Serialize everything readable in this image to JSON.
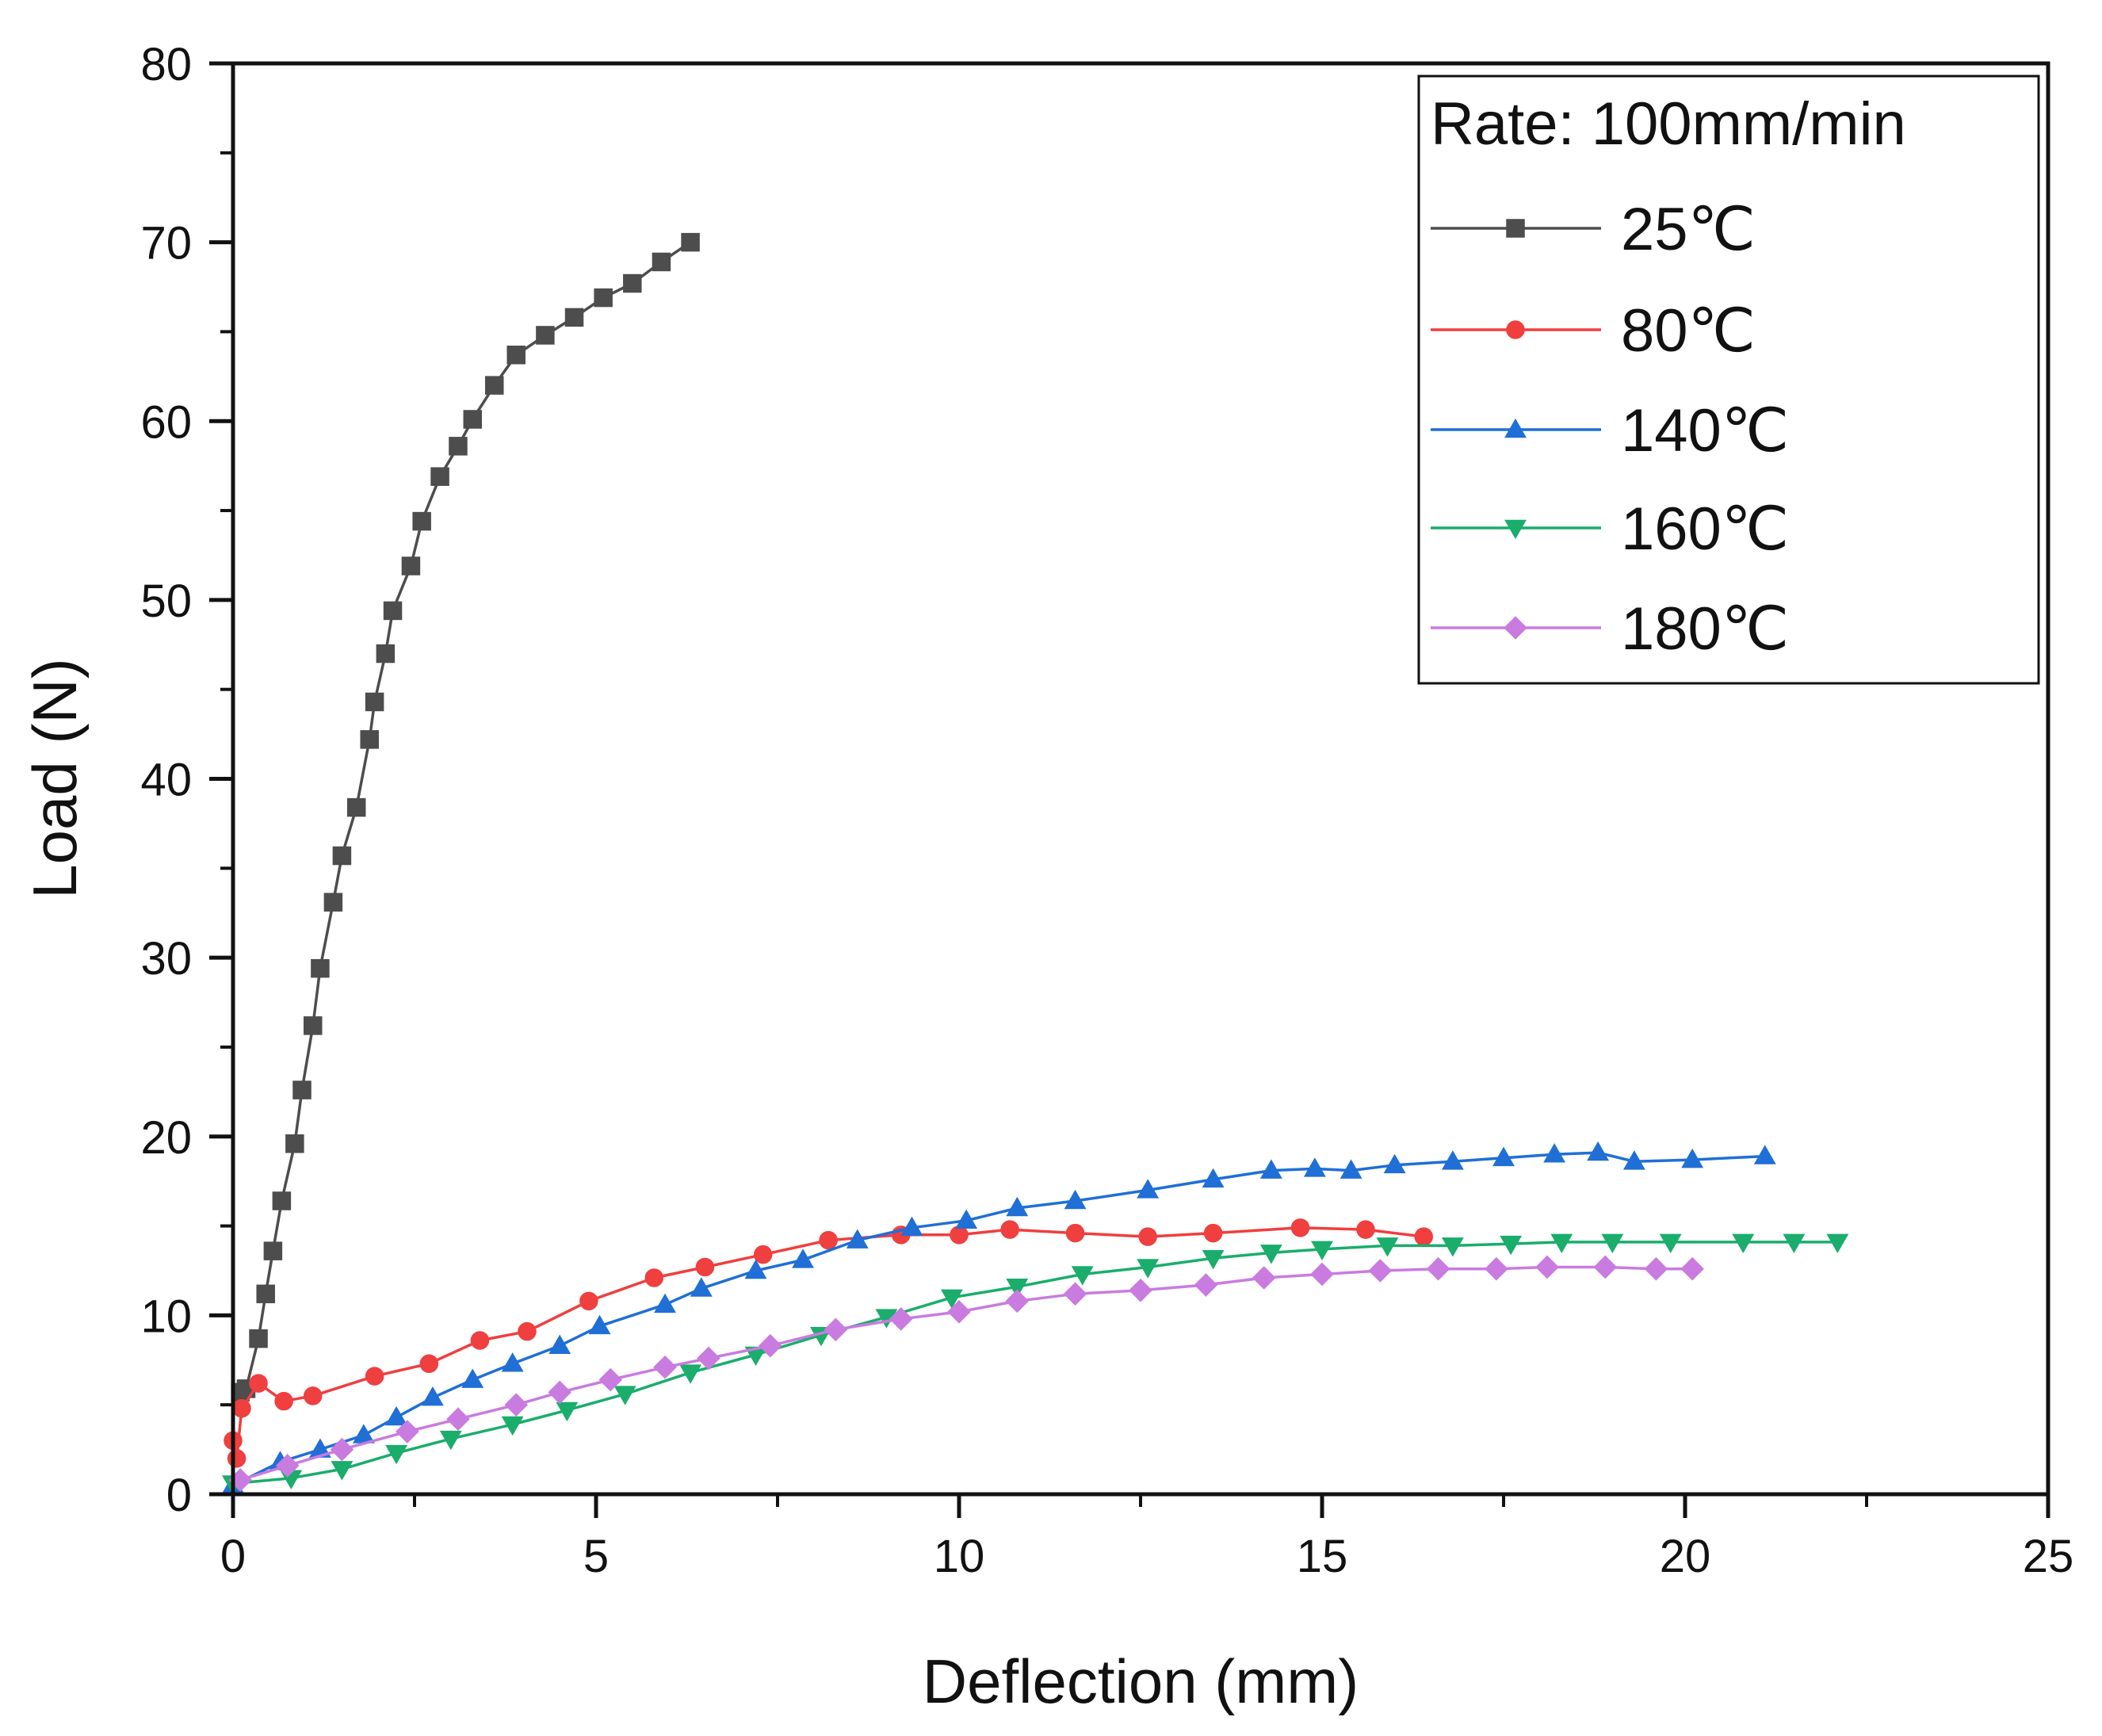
{
  "chart_data": {
    "type": "line",
    "title": "",
    "xlabel": "Deflection (mm)",
    "ylabel": "Load (N)",
    "xlim": [
      0,
      25
    ],
    "ylim": [
      0,
      80
    ],
    "xticks": [
      0,
      5,
      10,
      15,
      20,
      25
    ],
    "yticks": [
      0,
      10,
      20,
      30,
      40,
      50,
      60,
      70,
      80
    ],
    "grid": false,
    "legend": {
      "title": "Rate: 100mm/min",
      "position": "top-right"
    },
    "series": [
      {
        "name": "25℃",
        "color": "#4d4d4d",
        "marker": "square",
        "x": [
          0.1,
          0.18,
          0.35,
          0.45,
          0.55,
          0.67,
          0.85,
          0.95,
          1.1,
          1.2,
          1.38,
          1.5,
          1.7,
          1.88,
          1.95,
          2.1,
          2.2,
          2.45,
          2.6,
          2.85,
          3.1,
          3.3,
          3.6,
          3.9,
          4.3,
          4.7,
          5.1,
          5.5,
          5.9,
          6.3
        ],
        "y": [
          5.7,
          5.9,
          8.7,
          11.2,
          13.6,
          16.4,
          19.6,
          22.6,
          26.2,
          29.4,
          33.1,
          35.7,
          38.4,
          42.2,
          44.3,
          47.0,
          49.4,
          51.9,
          54.4,
          56.9,
          58.6,
          60.1,
          62.0,
          63.7,
          64.8,
          65.8,
          66.9,
          67.7,
          68.9,
          70.0
        ]
      },
      {
        "name": "80℃",
        "color": "#ef3f3f",
        "marker": "circle",
        "x": [
          0.0,
          0.05,
          0.12,
          0.35,
          0.7,
          1.1,
          1.95,
          2.7,
          3.4,
          4.05,
          4.9,
          5.8,
          6.5,
          7.3,
          8.2,
          9.2,
          10.0,
          10.7,
          11.6,
          12.6,
          13.5,
          14.7,
          15.6,
          16.4
        ],
        "y": [
          3.0,
          2.0,
          4.8,
          6.2,
          5.2,
          5.5,
          6.6,
          7.3,
          8.6,
          9.1,
          10.8,
          12.1,
          12.7,
          13.4,
          14.2,
          14.5,
          14.5,
          14.8,
          14.6,
          14.4,
          14.6,
          14.9,
          14.8,
          14.4
        ]
      },
      {
        "name": "140℃",
        "color": "#1f6fd6",
        "marker": "triangle-up",
        "x": [
          0.0,
          0.65,
          1.2,
          1.8,
          2.25,
          2.75,
          3.3,
          3.85,
          4.5,
          5.05,
          5.95,
          6.45,
          7.2,
          7.85,
          8.6,
          9.35,
          10.1,
          10.8,
          11.6,
          12.6,
          13.5,
          14.3,
          14.9,
          15.4,
          16.0,
          16.8,
          17.5,
          18.2,
          18.8,
          19.3,
          20.1,
          21.1
        ],
        "y": [
          0.5,
          1.8,
          2.5,
          3.3,
          4.3,
          5.4,
          6.4,
          7.3,
          8.3,
          9.4,
          10.6,
          11.5,
          12.5,
          13.1,
          14.2,
          14.9,
          15.3,
          16.0,
          16.4,
          17.0,
          17.6,
          18.1,
          18.2,
          18.1,
          18.4,
          18.6,
          18.8,
          19.0,
          19.1,
          18.6,
          18.7,
          18.9
        ]
      },
      {
        "name": "160℃",
        "color": "#1aad6c",
        "marker": "triangle-down",
        "x": [
          0.0,
          0.8,
          1.5,
          2.25,
          3.0,
          3.85,
          4.6,
          5.4,
          6.3,
          7.2,
          8.1,
          9.0,
          9.9,
          10.8,
          11.7,
          12.6,
          13.5,
          14.3,
          15.0,
          15.9,
          16.8,
          17.6,
          18.3,
          19.0,
          19.8,
          20.8,
          21.5,
          22.1
        ],
        "y": [
          0.6,
          0.9,
          1.4,
          2.3,
          3.1,
          3.9,
          4.7,
          5.6,
          6.8,
          7.8,
          8.9,
          9.9,
          11.0,
          11.6,
          12.3,
          12.7,
          13.2,
          13.5,
          13.7,
          13.9,
          13.9,
          14.0,
          14.1,
          14.1,
          14.1,
          14.1,
          14.1,
          14.1
        ]
      },
      {
        "name": "180℃",
        "color": "#c97be0",
        "marker": "diamond",
        "x": [
          0.1,
          0.75,
          1.5,
          2.4,
          3.1,
          3.9,
          4.5,
          5.2,
          5.95,
          6.55,
          7.4,
          8.3,
          9.2,
          10.0,
          10.8,
          11.6,
          12.5,
          13.4,
          14.2,
          15.0,
          15.8,
          16.6,
          17.4,
          18.1,
          18.9,
          19.6,
          20.1
        ],
        "y": [
          0.8,
          1.6,
          2.5,
          3.5,
          4.2,
          5.0,
          5.7,
          6.4,
          7.1,
          7.6,
          8.3,
          9.2,
          9.8,
          10.2,
          10.8,
          11.2,
          11.4,
          11.7,
          12.1,
          12.3,
          12.5,
          12.6,
          12.6,
          12.7,
          12.7,
          12.6,
          12.6
        ]
      }
    ]
  }
}
